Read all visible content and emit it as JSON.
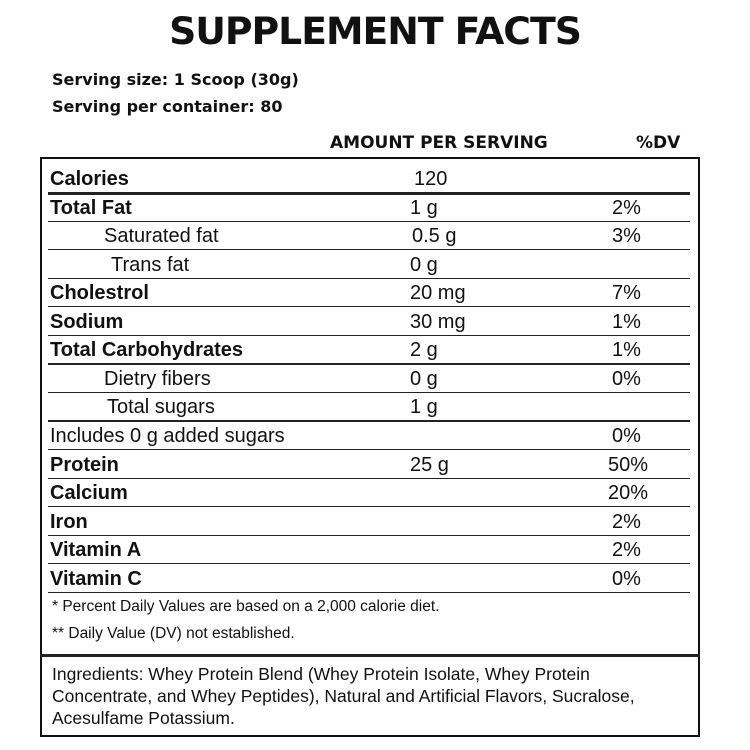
{
  "title": "SUPPLEMENT FACTS",
  "serving": [
    "Serving size: 1 Scoop (30g)",
    "Serving per container: 80"
  ],
  "header": {
    "amount": "AMOUNT PER SERVING",
    "dv": "%DV"
  },
  "rows": [
    {
      "name": "Calories",
      "amount": "120"
    },
    {
      "name": "Total Fat",
      "amount": "1 g",
      "dv": "2%"
    },
    {
      "name": "Saturated fat",
      "amount": "0.5 g",
      "dv": "3%"
    },
    {
      "name": "Trans fat",
      "amount": "0 g"
    },
    {
      "name": "Cholestrol",
      "amount": "20 mg",
      "dv": "7%"
    },
    {
      "name": "Sodium",
      "amount": "30 mg",
      "dv": "1%"
    },
    {
      "name": "Total Carbohydrates",
      "amount": "2 g",
      "dv": "1%"
    },
    {
      "name": "Dietry fibers",
      "amount": "0 g",
      "dv": "0%"
    },
    {
      "name": "Total sugars",
      "amount": "1 g"
    },
    {
      "name": "Includes 0 g added sugars",
      "dv": "0%"
    },
    {
      "name": "Protein",
      "amount": "25 g",
      "dv": "50%"
    },
    {
      "name": "Calcium",
      "dv": "20%"
    },
    {
      "name": "Iron",
      "dv": "2%"
    },
    {
      "name": "Vitamin A",
      "dv": "2%"
    },
    {
      "name": "Vitamin C",
      "dv": "0%"
    }
  ],
  "footnotes": [
    "* Percent Daily Values are based on a 2,000 calorie diet.",
    "** Daily Value (DV) not established."
  ],
  "ingredients": "Ingredients: Whey Protein Blend (Whey Protein Isolate, Whey Protein Concentrate, and Whey Peptides), Natural and Artificial Flavors, Sucralose, Acesulfame Potassium."
}
